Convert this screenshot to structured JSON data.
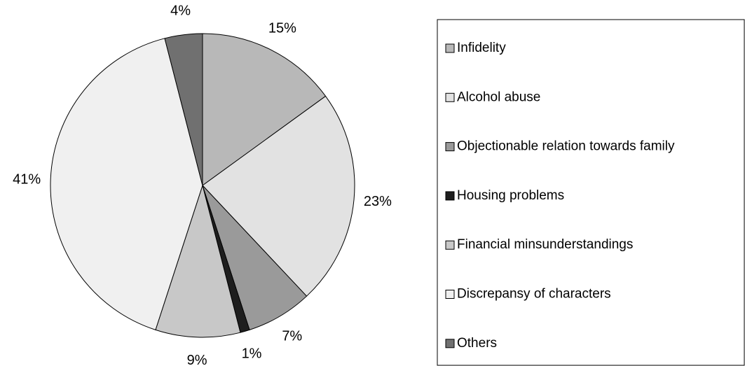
{
  "chart_data": {
    "type": "pie",
    "categories": [
      "Infidelity",
      "Alcohol abuse",
      "Objectionable relation towards family",
      "Housing problems",
      "Financial minsunderstandings",
      "Discrepansy of characters",
      "Others"
    ],
    "values": [
      15,
      23,
      7,
      1,
      9,
      41,
      4
    ],
    "value_labels": [
      "15%",
      "23%",
      "7%",
      "1%",
      "9%",
      "41%",
      "4%"
    ],
    "colors": [
      "#b8b8b8",
      "#e2e2e2",
      "#9a9a9a",
      "#1e1e1e",
      "#c8c8c8",
      "#f0f0f0",
      "#707070"
    ],
    "legend": "right"
  }
}
